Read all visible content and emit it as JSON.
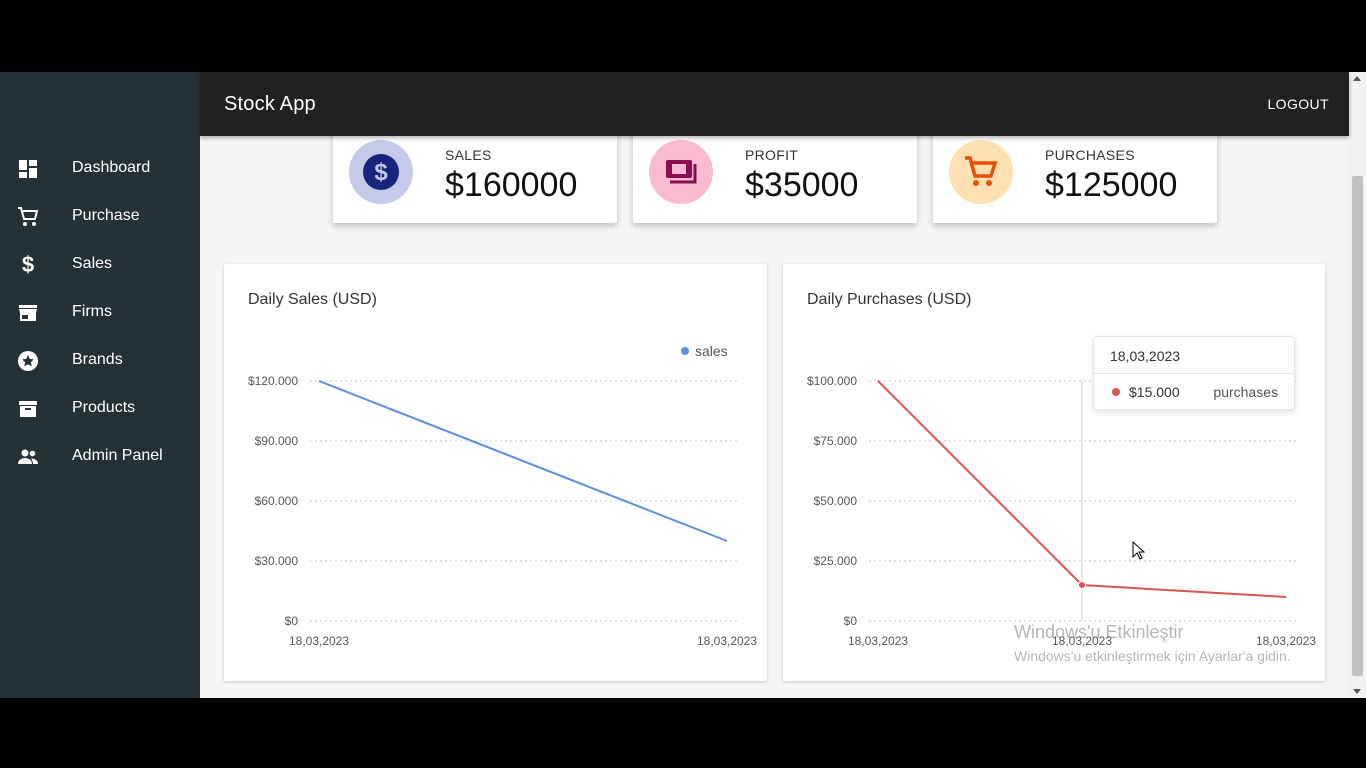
{
  "topbar": {
    "title": "Stock App",
    "logout_label": "LOGOUT"
  },
  "sidebar": {
    "items": [
      {
        "label": "Dashboard",
        "icon": "dashboard-icon"
      },
      {
        "label": "Purchase",
        "icon": "cart-icon"
      },
      {
        "label": "Sales",
        "icon": "dollar-icon"
      },
      {
        "label": "Firms",
        "icon": "store-icon"
      },
      {
        "label": "Brands",
        "icon": "star-icon"
      },
      {
        "label": "Products",
        "icon": "archive-icon"
      },
      {
        "label": "Admin Panel",
        "icon": "people-icon"
      }
    ]
  },
  "stats": [
    {
      "label": "SALES",
      "value": "$160000",
      "icon": "dollar-circle-icon",
      "icon_color": "#1a237e",
      "bg_color": "#c5cae9"
    },
    {
      "label": "PROFIT",
      "value": "$35000",
      "icon": "money-icon",
      "icon_color": "#880e4f",
      "bg_color": "#f8bbd0"
    },
    {
      "label": "PURCHASES",
      "value": "$125000",
      "icon": "cart-icon",
      "icon_color": "#e65100",
      "bg_color": "#ffe0b2"
    }
  ],
  "charts": {
    "sales": {
      "title": "Daily Sales (USD)",
      "legend": "sales"
    },
    "purchases": {
      "title": "Daily Purchases (USD)"
    }
  },
  "tooltip": {
    "date": "18,03,2023",
    "value": "$15.000",
    "series": "purchases"
  },
  "watermark": {
    "title": "Windows'u Etkinleştir",
    "subtitle": "Windows'u etkinleştirmek için Ayarlar'a gidin."
  },
  "chart_data": [
    {
      "type": "line",
      "title": "Daily Sales (USD)",
      "x": [
        "18,03,2023",
        "18,03,2023"
      ],
      "series": [
        {
          "name": "sales",
          "values": [
            120000,
            40000
          ],
          "color": "#5b8fdc"
        }
      ],
      "yticks": [
        "$0",
        "$30.000",
        "$60.000",
        "$90.000",
        "$120.000"
      ],
      "ylim": [
        0,
        120000
      ],
      "grid": true,
      "legend": "top-right"
    },
    {
      "type": "line",
      "title": "Daily Purchases (USD)",
      "x": [
        "18,03,2023",
        "18,03,2023",
        "18,03,2023"
      ],
      "series": [
        {
          "name": "purchases",
          "values": [
            100000,
            15000,
            10000
          ],
          "color": "#d9534f"
        }
      ],
      "yticks": [
        "$0",
        "$25.000",
        "$50.000",
        "$75.000",
        "$100.000"
      ],
      "ylim": [
        0,
        100000
      ],
      "grid": true,
      "legend": "none"
    }
  ]
}
